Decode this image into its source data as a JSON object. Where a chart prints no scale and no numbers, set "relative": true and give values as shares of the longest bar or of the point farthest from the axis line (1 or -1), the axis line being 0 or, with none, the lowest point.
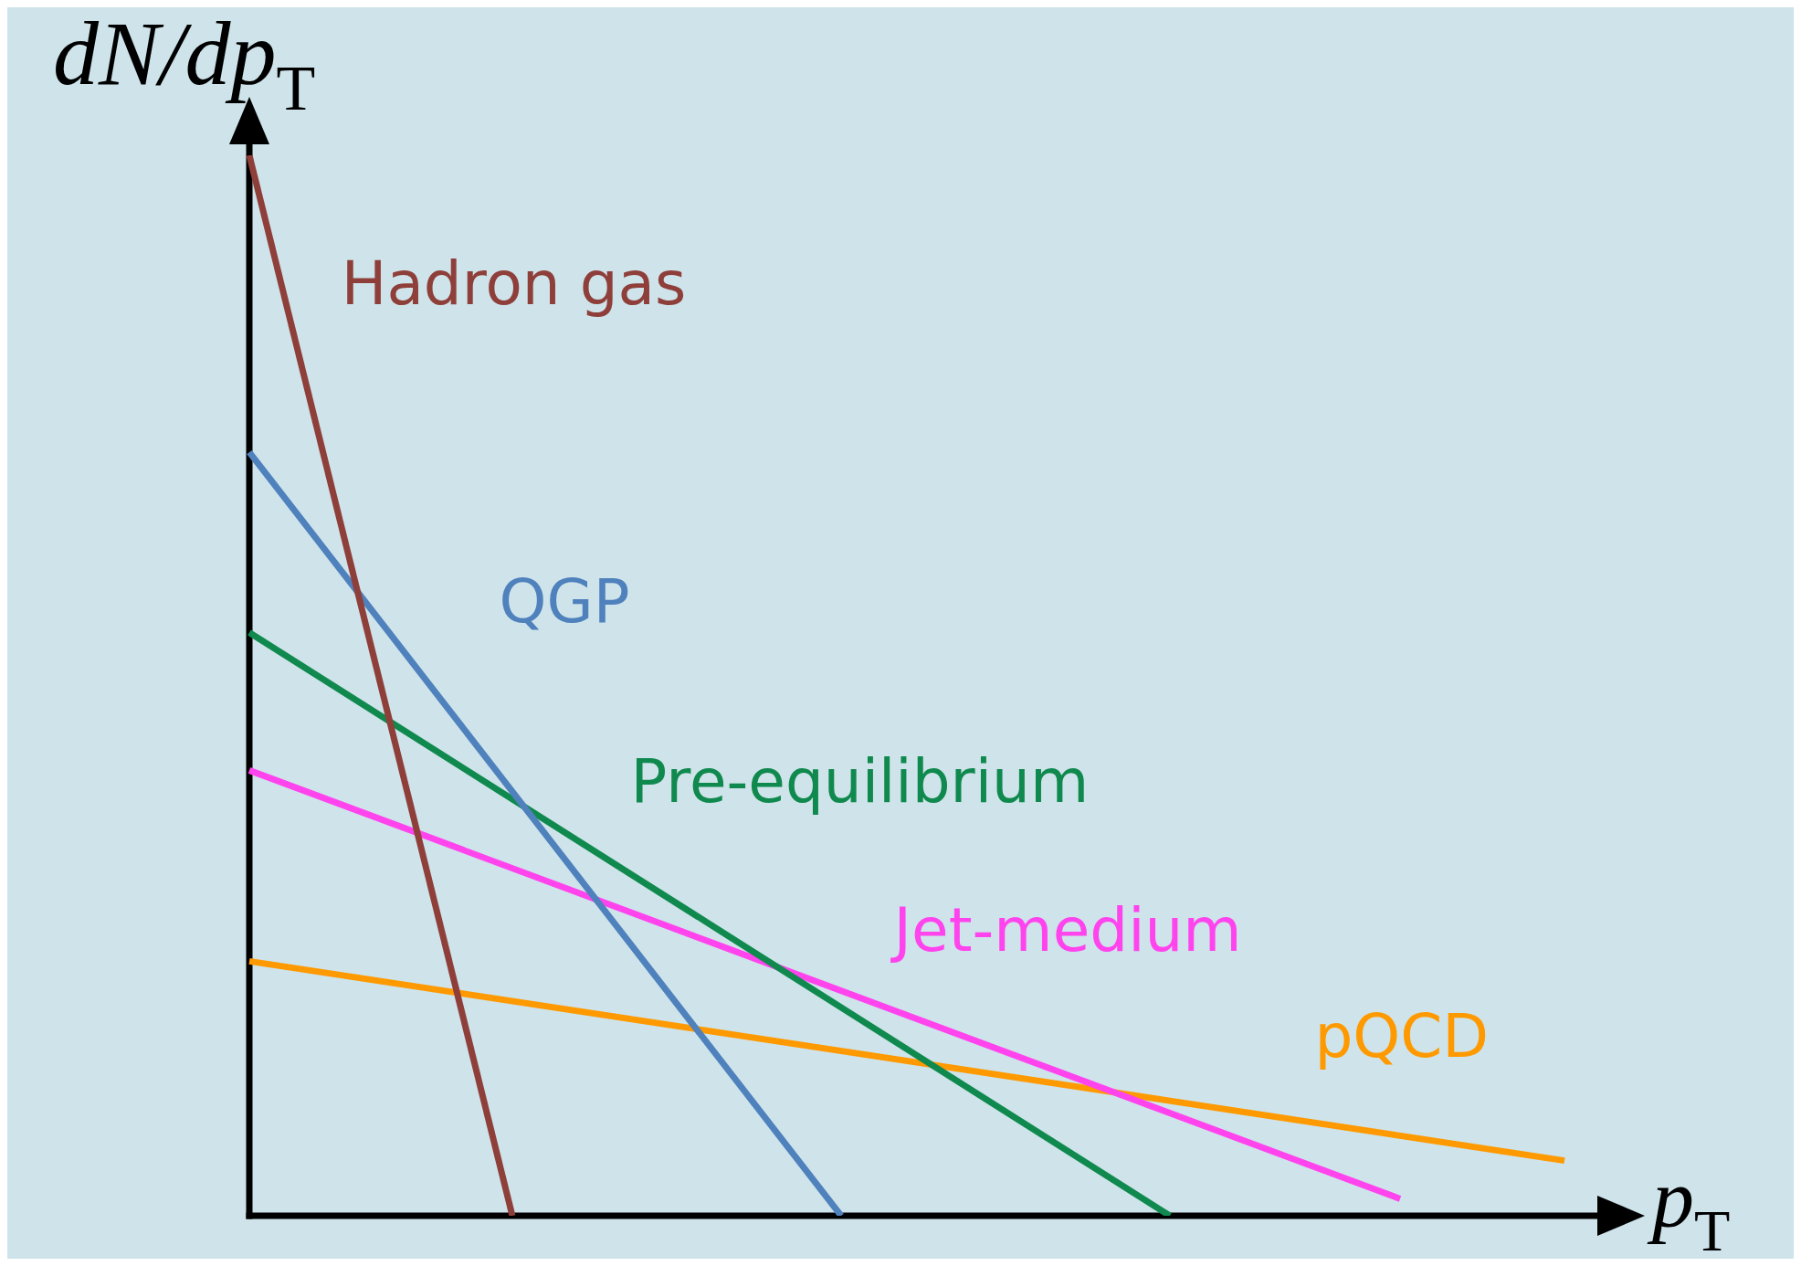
{
  "chart_data": {
    "type": "line",
    "relative": true,
    "xlabel": "p$_{T}$",
    "ylabel": "dN/dp$_{T}$",
    "legend": false,
    "marker": "none",
    "line_style": "solid",
    "categories": [
      null,
      null,
      null,
      null,
      null,
      null,
      null,
      null,
      null,
      null,
      null,
      null,
      null,
      null,
      null,
      null,
      null,
      null,
      null,
      null,
      null,
      null,
      null,
      null,
      null,
      null,
      null,
      null,
      null,
      null,
      null,
      null,
      null,
      null,
      null,
      null,
      null,
      null,
      null,
      null,
      null
    ],
    "series": [
      {
        "name": "Hadron gas",
        "color": "#8f3f3a",
        "values": [
          1,
          null,
          null,
          null,
          null,
          null,
          null,
          null,
          0,
          null,
          null,
          null,
          null,
          null,
          null,
          null,
          null,
          null,
          null,
          null,
          null,
          null,
          null,
          null,
          null,
          null,
          null,
          null,
          null,
          null,
          null,
          null,
          null,
          null,
          null,
          null,
          null,
          null,
          null,
          null,
          null
        ]
      },
      {
        "name": "QGP",
        "color": "#4f81bd",
        "values": [
          0.72,
          null,
          null,
          null,
          null,
          null,
          null,
          null,
          null,
          null,
          null,
          null,
          null,
          null,
          null,
          null,
          null,
          null,
          0,
          null,
          null,
          null,
          null,
          null,
          null,
          null,
          null,
          null,
          null,
          null,
          null,
          null,
          null,
          null,
          null,
          null,
          null,
          null,
          null,
          null,
          null
        ]
      },
      {
        "name": "Pre-equilibrium",
        "color": "#10894e",
        "values": [
          0.55,
          null,
          null,
          null,
          null,
          null,
          null,
          null,
          null,
          null,
          null,
          null,
          null,
          null,
          null,
          null,
          null,
          null,
          null,
          null,
          null,
          null,
          null,
          null,
          null,
          null,
          null,
          null,
          0,
          null,
          null,
          null,
          null,
          null,
          null,
          null,
          null,
          null,
          null,
          null,
          null
        ]
      },
      {
        "name": "Jet-medium",
        "color": "#ff44ee",
        "values": [
          0.42,
          null,
          null,
          null,
          null,
          null,
          null,
          null,
          null,
          null,
          null,
          null,
          null,
          null,
          null,
          null,
          null,
          null,
          null,
          null,
          null,
          null,
          null,
          null,
          null,
          null,
          null,
          null,
          null,
          null,
          null,
          null,
          null,
          null,
          null,
          0.016,
          null,
          null,
          null,
          null,
          null
        ]
      },
      {
        "name": "pQCD",
        "color": "#ff9900",
        "values": [
          0.24,
          null,
          null,
          null,
          null,
          null,
          null,
          null,
          null,
          null,
          null,
          null,
          null,
          null,
          null,
          null,
          null,
          null,
          null,
          null,
          null,
          null,
          null,
          null,
          null,
          null,
          null,
          null,
          null,
          null,
          null,
          null,
          null,
          null,
          null,
          null,
          null,
          null,
          null,
          null,
          0.052
        ]
      }
    ]
  }
}
